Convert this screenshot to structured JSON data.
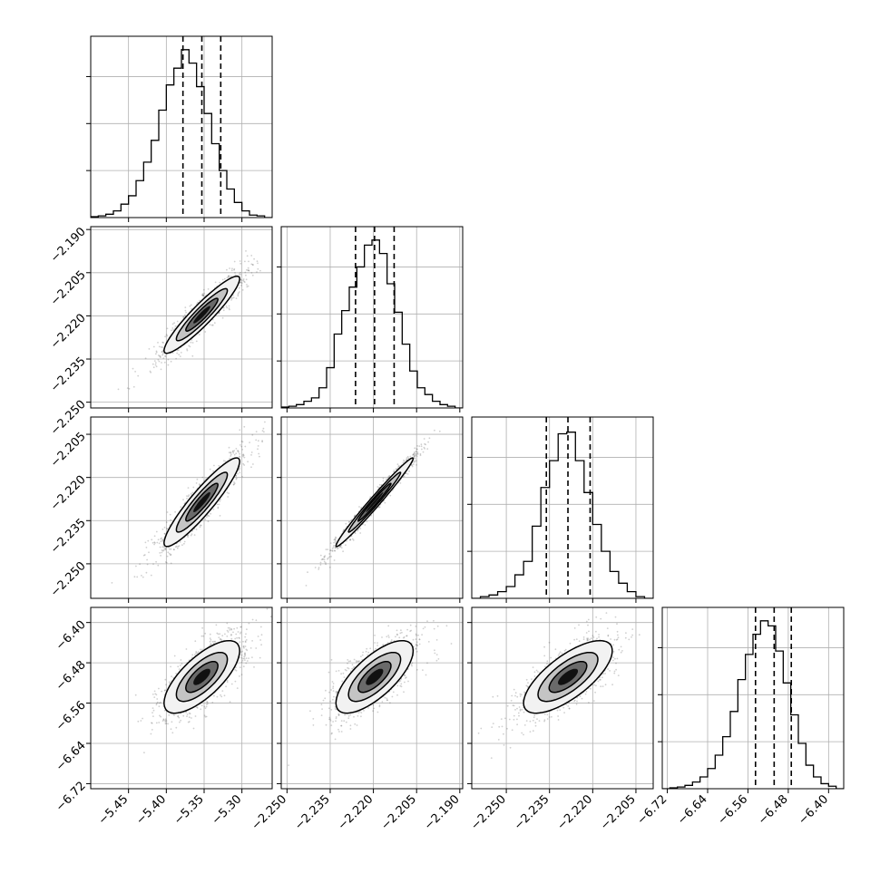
{
  "chart_data": {
    "type": "corner",
    "grid": true,
    "parameters": [
      {
        "range": [
          -5.5,
          -5.26
        ],
        "ticks": [
          -5.45,
          -5.4,
          -5.35,
          -5.3
        ],
        "tick_labels": [
          "−5.45",
          "−5.40",
          "−5.35",
          "−5.30"
        ],
        "quantiles": [
          -5.378,
          -5.353,
          -5.328
        ],
        "hist": [
          0.5,
          1,
          2,
          4,
          8,
          13,
          22,
          33,
          46,
          64,
          79,
          89,
          100,
          92,
          78,
          62,
          44,
          28,
          17,
          9,
          4,
          1.5,
          1,
          0
        ]
      },
      {
        "range": [
          -2.252,
          -2.189
        ],
        "ticks": [
          -2.25,
          -2.235,
          -2.22,
          -2.205,
          -2.19
        ],
        "tick_labels": [
          "−2.250",
          "−2.235",
          "−2.220",
          "−2.205",
          "−2.190"
        ],
        "quantiles": [
          -2.2262,
          -2.2196,
          -2.2128
        ],
        "hist": [
          0.5,
          1,
          2,
          4,
          6,
          12,
          24,
          44,
          58,
          72,
          84,
          97,
          100,
          92,
          74,
          57,
          38,
          22,
          12,
          8,
          4,
          2,
          1,
          0
        ]
      },
      {
        "range": [
          -2.262,
          -2.199
        ],
        "ticks": [
          -2.25,
          -2.235,
          -2.22,
          -2.205
        ],
        "tick_labels": [
          "−2.250",
          "−2.235",
          "−2.220",
          "−2.205"
        ],
        "quantiles": [
          -2.2361,
          -2.2286,
          -2.2209
        ],
        "hist": [
          0,
          1,
          2,
          4,
          7,
          14,
          22,
          43,
          66,
          82,
          98,
          99,
          82,
          63,
          44,
          28,
          16,
          9,
          4,
          1,
          0
        ]
      },
      {
        "range": [
          -6.73,
          -6.37
        ],
        "ticks": [
          -6.72,
          -6.64,
          -6.56,
          -6.48,
          -6.4
        ],
        "tick_labels": [
          "−6.72",
          "−6.64",
          "−6.56",
          "−6.48",
          "−6.40"
        ],
        "quantiles": [
          -6.545,
          -6.508,
          -6.474
        ],
        "hist": [
          0,
          0.5,
          1,
          2,
          4,
          7,
          12,
          20,
          31,
          46,
          65,
          80,
          92,
          100,
          97,
          82,
          63,
          44,
          27,
          14,
          7,
          3,
          1.5,
          0
        ]
      }
    ],
    "pairs": [
      {
        "row": 1,
        "col": 0,
        "center": [
          -5.353,
          -2.2196
        ],
        "sigma": [
          0.025,
          0.0067
        ],
        "rho": 0.93
      },
      {
        "row": 2,
        "col": 0,
        "center": [
          -5.353,
          -2.2286
        ],
        "sigma": [
          0.025,
          0.0077
        ],
        "rho": 0.92
      },
      {
        "row": 2,
        "col": 1,
        "center": [
          -2.2196,
          -2.2286
        ],
        "sigma": [
          0.0067,
          0.0077
        ],
        "rho": 0.985
      },
      {
        "row": 3,
        "col": 0,
        "center": [
          -5.353,
          -6.508
        ],
        "sigma": [
          0.025,
          0.036
        ],
        "rho": 0.72
      },
      {
        "row": 3,
        "col": 1,
        "center": [
          -2.2196,
          -6.508
        ],
        "sigma": [
          0.0067,
          0.036
        ],
        "rho": 0.72
      },
      {
        "row": 3,
        "col": 2,
        "center": [
          -2.2286,
          -6.508
        ],
        "sigma": [
          0.0077,
          0.036
        ],
        "rho": 0.72
      }
    ]
  }
}
